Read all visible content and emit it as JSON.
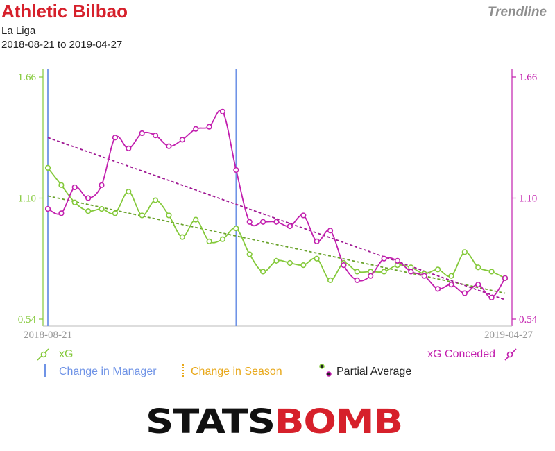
{
  "header": {
    "team": "Athletic Bilbao",
    "chart_kind": "Trendline",
    "competition": "La Liga",
    "date_range": "2018-08-21 to 2019-04-27"
  },
  "legend": {
    "xg": "xG",
    "xg_conceded": "xG Conceded",
    "manager_change": "Change in Manager",
    "season_change": "Change in Season",
    "partial_average": "Partial Average"
  },
  "brand": {
    "logo_part1": "STATS",
    "logo_part2": "BOMB"
  },
  "colors": {
    "xg": "#84c93a",
    "xg_trend": "#6aa32c",
    "xg_conceded": "#c21fae",
    "xg_conceded_trend": "#a01a94",
    "manager_change": "#6f93e6",
    "season_change": "#e8a81a",
    "title": "#d6202b",
    "logo_black": "#111111",
    "logo_red": "#d6202b"
  },
  "chart_data": {
    "type": "line",
    "x_labels": [
      "2018-08-21",
      "2019-04-27"
    ],
    "x_index_range": [
      1,
      35
    ],
    "ylim": [
      0.54,
      1.66
    ],
    "y_ticks": [
      "0.54",
      "1.10",
      "1.66"
    ],
    "series": [
      {
        "name": "xG",
        "axis": "left",
        "values": [
          1.24,
          1.16,
          1.08,
          1.04,
          1.05,
          1.03,
          1.13,
          1.02,
          1.09,
          1.02,
          0.92,
          1.0,
          0.9,
          0.91,
          0.96,
          0.84,
          0.76,
          0.81,
          0.8,
          0.79,
          0.82,
          0.72,
          0.8,
          0.76,
          0.76,
          0.76,
          0.79,
          0.78,
          0.75,
          0.77,
          0.74,
          0.85,
          0.78,
          0.76,
          0.73
        ]
      },
      {
        "name": "xG Conceded",
        "axis": "right",
        "values": [
          1.05,
          1.03,
          1.15,
          1.1,
          1.16,
          1.38,
          1.33,
          1.4,
          1.39,
          1.34,
          1.37,
          1.42,
          1.43,
          1.5,
          1.23,
          0.99,
          0.99,
          0.99,
          0.97,
          1.02,
          0.9,
          0.95,
          0.79,
          0.72,
          0.74,
          0.82,
          0.81,
          0.76,
          0.74,
          0.68,
          0.7,
          0.66,
          0.7,
          0.64,
          0.73
        ]
      }
    ],
    "trendlines": [
      {
        "series": "xG",
        "start": 1.11,
        "end": 0.66
      },
      {
        "series": "xG Conceded",
        "start": 1.38,
        "end": 0.63
      }
    ],
    "manager_changes_at_index": [
      1,
      15
    ],
    "grid": false,
    "legend_position": "bottom"
  }
}
